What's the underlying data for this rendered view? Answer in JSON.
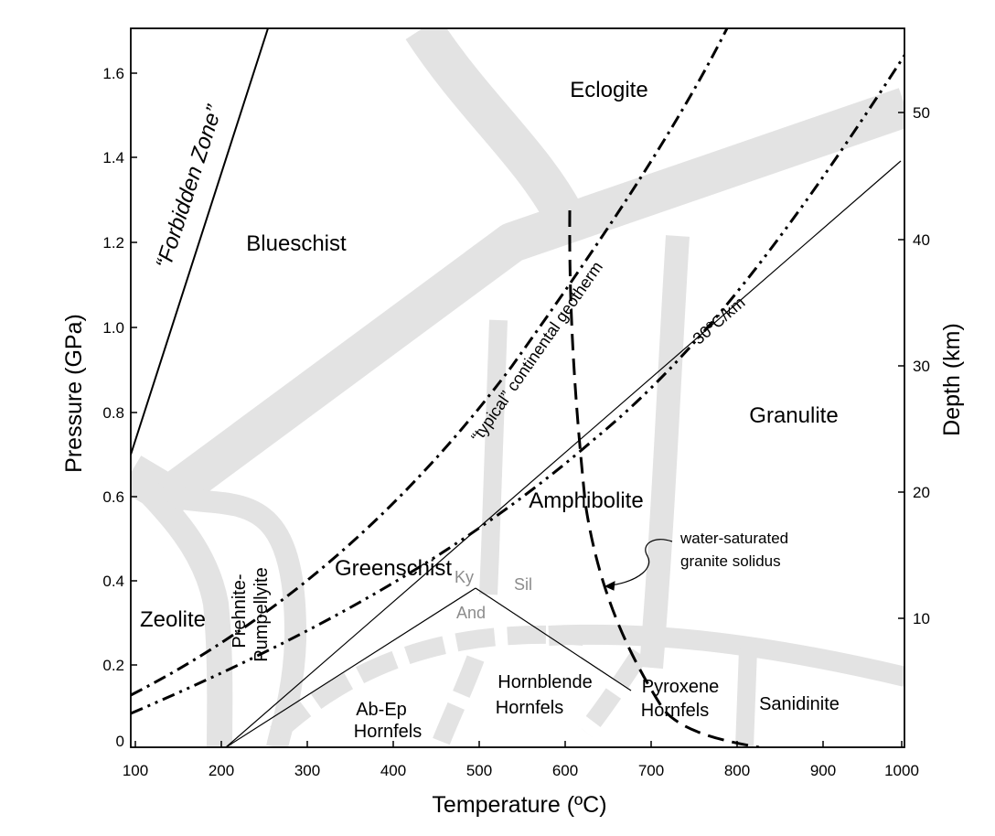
{
  "axes": {
    "x_title": "Temperature (ºC)",
    "y_left_title": "Pressure (GPa)",
    "y_right_title": "Depth (km)",
    "x_ticks": [
      "100",
      "200",
      "300",
      "400",
      "500",
      "600",
      "700",
      "800",
      "900",
      "1000"
    ],
    "y_left_ticks": [
      "0",
      "0.2",
      "0.4",
      "0.6",
      "0.8",
      "1.0",
      "1.2",
      "1.4",
      "1.6"
    ],
    "y_right_ticks": [
      "10",
      "20",
      "30",
      "40",
      "50"
    ],
    "x_range": [
      100,
      1000
    ],
    "y_range": [
      0,
      1.7
    ]
  },
  "facies_labels": {
    "eclogite": "Eclogite",
    "blueschist": "Blueschist",
    "granulite": "Granulite",
    "amphibolite": "Amphibolite",
    "greenschist": "Greenschist",
    "zeolite": "Zeolite",
    "prehnite_1": "Prehnite-",
    "prehnite_2": "Pumpellyite",
    "abep_1": "Ab-Ep",
    "abep_2": "Hornfels",
    "hornblende_1": "Hornblende",
    "hornblende_2": "Hornfels",
    "pyroxene_1": "Pyroxene",
    "pyroxene_2": "Hornfels",
    "sanidinite": "Sanidinite"
  },
  "line_labels": {
    "forbidden_zone": "“Forbidden Zone”",
    "geotherm": "“typical” continental geotherm",
    "gradient": "30ºC/km",
    "solidus_1": "water-saturated",
    "solidus_2": "granite solidus"
  },
  "triple_point": {
    "ky": "Ky",
    "sil": "Sil",
    "and": "And"
  },
  "colors": {
    "facies_boundary": "#e3e3e3",
    "lines": "#000000",
    "aluminosilicate_labels": "#8c8c8c"
  }
}
